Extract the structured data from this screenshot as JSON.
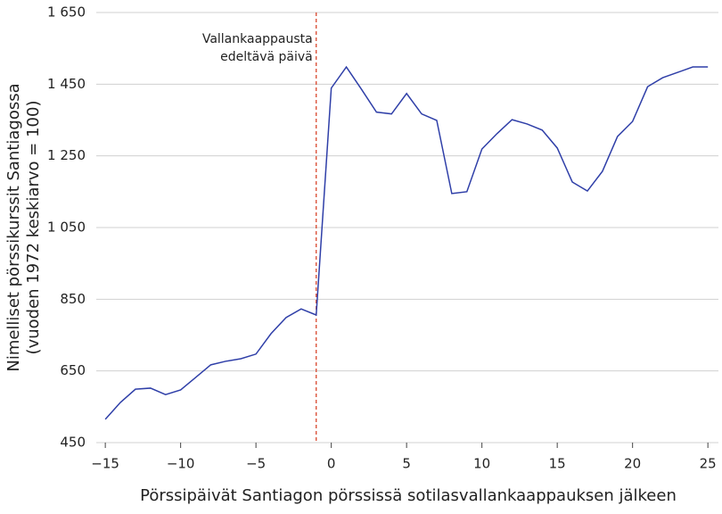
{
  "chart_data": {
    "type": "line",
    "x": [
      -15,
      -14,
      -13,
      -12,
      -11,
      -10,
      -9,
      -8,
      -7,
      -6,
      -5,
      -4,
      -3,
      -2,
      -1,
      0,
      1,
      2,
      3,
      4,
      5,
      6,
      7,
      8,
      9,
      10,
      11,
      12,
      13,
      14,
      15,
      16,
      17,
      18,
      19,
      20,
      21,
      22,
      23,
      24,
      25
    ],
    "series": [
      {
        "color": "#2f3fa8",
        "values": [
          515,
          562,
          599,
          602,
          584,
          597,
          632,
          667,
          677,
          684,
          697,
          754,
          799,
          823,
          806,
          1439,
          1498,
          1436,
          1372,
          1367,
          1424,
          1367,
          1349,
          1145,
          1150,
          1269,
          1312,
          1351,
          1339,
          1322,
          1272,
          1177,
          1152,
          1207,
          1304,
          1346,
          1443,
          1468,
          1483,
          1498,
          1498
        ]
      }
    ],
    "xlim": [
      -15.6,
      25.7
    ],
    "ylim": [
      450,
      1650
    ],
    "xticks": [
      {
        "value": -15,
        "label": "−15"
      },
      {
        "value": -10,
        "label": "−10"
      },
      {
        "value": -5,
        "label": "−5"
      },
      0,
      5,
      10,
      15,
      20,
      25
    ],
    "yticks": [
      450,
      650,
      850,
      {
        "value": 1050,
        "label": "1 050"
      },
      {
        "value": 1250,
        "label": "1 250"
      },
      {
        "value": 1450,
        "label": "1 450"
      },
      {
        "value": 1650,
        "label": "1 650"
      }
    ],
    "grid": true,
    "xlabel": "Pörssipäivät Santiagon pörssissä sotilasvallankaappauksen jälkeen",
    "ylabel": [
      "Nimelliset pörssikurssit Santiagossa",
      "(vuoden 1972 keskiarvo = 100)"
    ],
    "vline": {
      "x": -1,
      "color": "#d9462b",
      "label": [
        "Vallankaappausta",
        "edeltävä päivä"
      ]
    }
  }
}
